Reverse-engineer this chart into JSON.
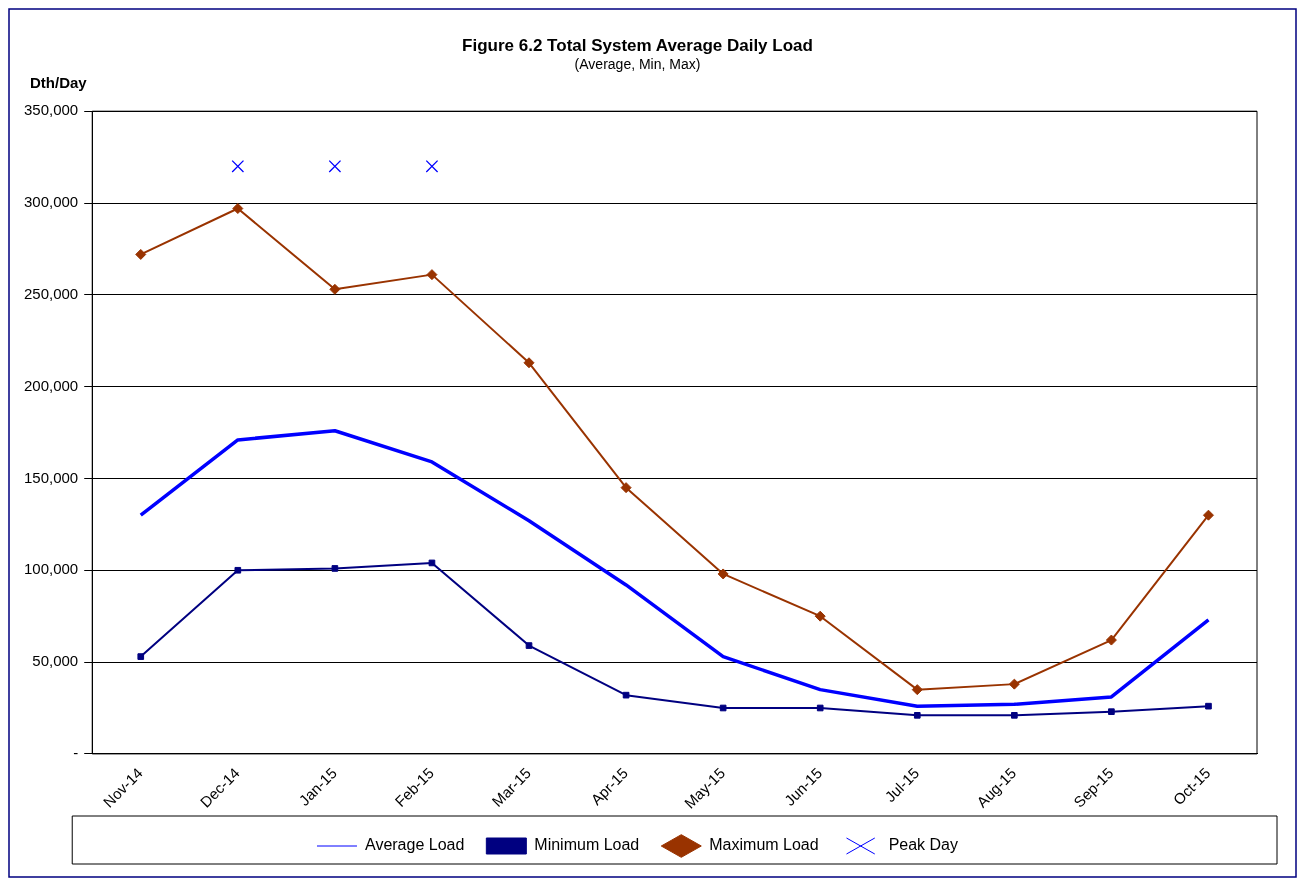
{
  "chart_data": {
    "type": "line",
    "title": "Figure 6.2 Total System Average Daily Load",
    "subtitle": "(Average, Min, Max)",
    "ylabel": "Dth/Day",
    "categories": [
      "Nov-14",
      "Dec-14",
      "Jan-15",
      "Feb-15",
      "Mar-15",
      "Apr-15",
      "May-15",
      "Jun-15",
      "Jul-15",
      "Aug-15",
      "Sep-15",
      "Oct-15"
    ],
    "series": [
      {
        "name": "Average Load",
        "color": "#0000ff",
        "marker": "none",
        "values": [
          130000,
          171000,
          176000,
          159000,
          127000,
          92000,
          53000,
          35000,
          26000,
          27000,
          31000,
          73000
        ]
      },
      {
        "name": "Minimum Load",
        "color": "#000080",
        "marker": "square",
        "values": [
          53000,
          100000,
          101000,
          104000,
          59000,
          32000,
          25000,
          25000,
          21000,
          21000,
          23000,
          26000
        ]
      },
      {
        "name": "Maximum Load",
        "color": "#993300",
        "marker": "diamond",
        "values": [
          272000,
          297000,
          253000,
          261000,
          213000,
          145000,
          98000,
          75000,
          35000,
          38000,
          62000,
          130000
        ]
      },
      {
        "name": "Peak Day",
        "type": "scatter",
        "color": "#0000ff",
        "marker": "cross",
        "values": [
          null,
          320000,
          320000,
          320000,
          null,
          null,
          null,
          null,
          null,
          null,
          null,
          null
        ]
      }
    ],
    "ylim": [
      0,
      350000
    ],
    "yticks": [
      {
        "value": 0,
        "label": "-"
      },
      {
        "value": 50000,
        "label": "50,000"
      },
      {
        "value": 100000,
        "label": "100,000"
      },
      {
        "value": 150000,
        "label": "150,000"
      },
      {
        "value": 200000,
        "label": "200,000"
      },
      {
        "value": 250000,
        "label": "250,000"
      },
      {
        "value": 300000,
        "label": "300,000"
      },
      {
        "value": 350000,
        "label": "350,000"
      }
    ],
    "grid": "y",
    "legend": "bottom"
  }
}
